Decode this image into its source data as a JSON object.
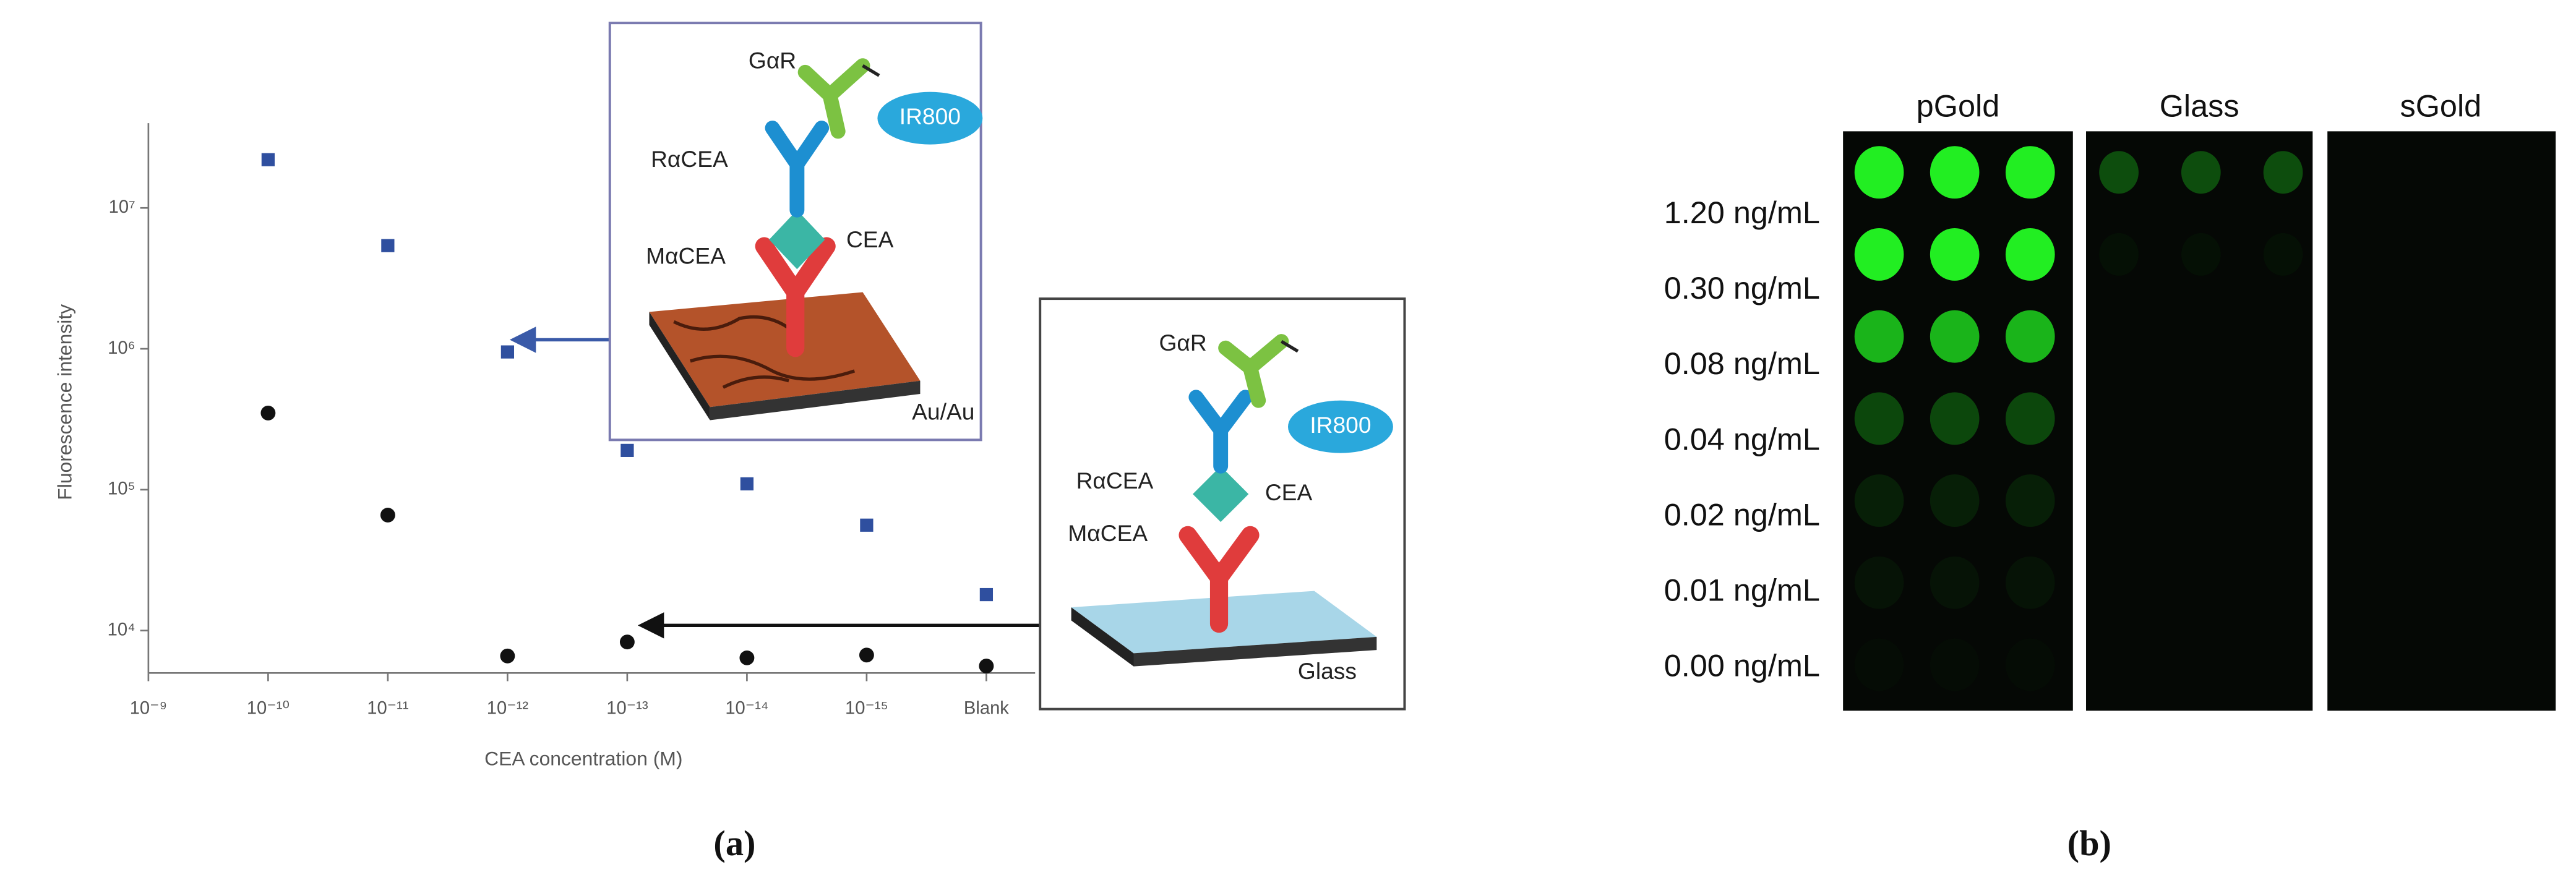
{
  "chart_data": {
    "type": "scatter",
    "categories": [
      "10⁻⁹",
      "10⁻¹⁰",
      "10⁻¹¹",
      "10⁻¹²",
      "10⁻¹³",
      "10⁻¹⁴",
      "10⁻¹⁵",
      "Blank"
    ],
    "series": [
      {
        "color": "#2f4f9f",
        "marker": "square",
        "values": [
          null,
          22000000,
          5400000,
          950000,
          190000,
          110000,
          56000,
          18000
        ]
      },
      {
        "color": "#111111",
        "marker": "circle",
        "values": [
          null,
          350000,
          66000,
          6600,
          8300,
          6400,
          6700,
          5600
        ]
      }
    ],
    "ylim": [
      5000,
      40000000
    ],
    "log_y": true,
    "yticks": [
      {
        "value": 10000,
        "label": "10⁴"
      },
      {
        "value": 100000,
        "label": "10⁵"
      },
      {
        "value": 1000000,
        "label": "10⁶"
      },
      {
        "value": 10000000,
        "label": "10⁷"
      }
    ],
    "xlabel": "CEA concentration (M)",
    "ylabel": "Fluorescence intensity"
  },
  "insets": [
    {
      "labels": [
        "GαR",
        "IR800",
        "RαCEA",
        "CEA",
        "MαCEA",
        "Au/Au"
      ]
    },
    {
      "labels": [
        "GαR",
        "IR800",
        "RαCEA",
        "CEA",
        "MαCEA",
        "Glass"
      ]
    }
  ],
  "panel_b": {
    "columns": [
      "pGold",
      "Glass",
      "sGold"
    ],
    "rows": [
      "1.20 ng/mL",
      "0.30 ng/mL",
      "0.08 ng/mL",
      "0.04 ng/mL",
      "0.02 ng/mL",
      "0.01 ng/mL",
      "0.00 ng/mL"
    ]
  },
  "captions": [
    "(a)",
    "(b)"
  ]
}
